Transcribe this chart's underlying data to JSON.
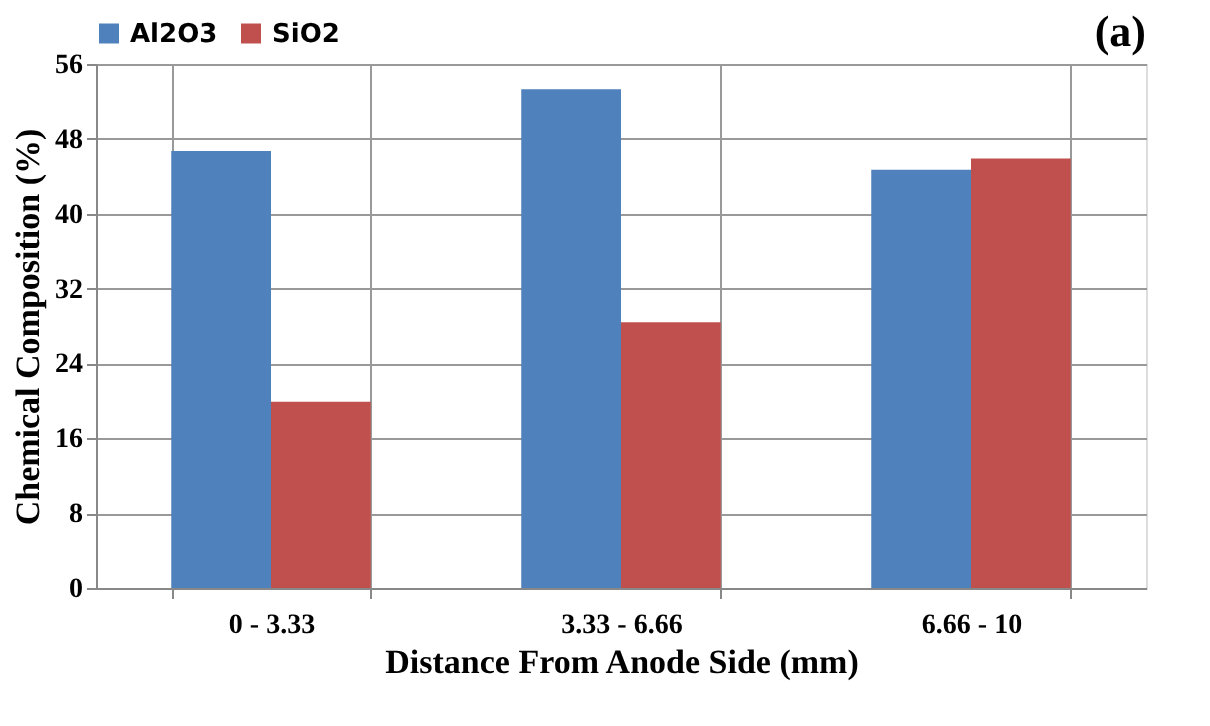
{
  "chart_data": {
    "type": "bar",
    "annotations": [
      "(a)"
    ],
    "xlabel": "Distance From Anode Side (mm)",
    "ylabel": "Chemical Composition (%)",
    "categories": [
      "0 - 3.33",
      "3.33 - 6.66",
      "6.66 - 10"
    ],
    "series": [
      {
        "name": "Al2O3",
        "color": "#4f81bd",
        "values": [
          46.7,
          53.3,
          44.7
        ]
      },
      {
        "name": "SiO2",
        "color": "#c0504d",
        "values": [
          19.9,
          28.4,
          45.9
        ]
      }
    ],
    "ylim": [
      0,
      56
    ],
    "yticks": [
      0,
      8,
      16,
      24,
      32,
      40,
      48,
      56
    ],
    "grid": true,
    "legend": "top"
  }
}
